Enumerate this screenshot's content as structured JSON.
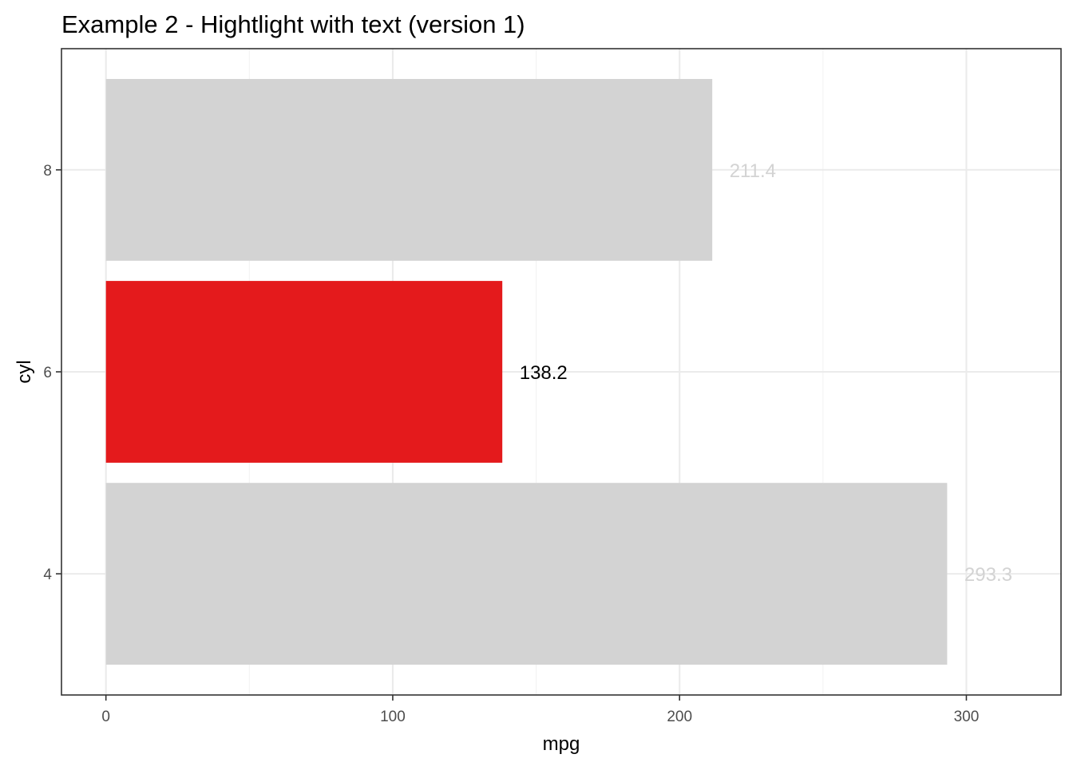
{
  "chart_data": {
    "type": "bar",
    "orientation": "horizontal",
    "title": "Example 2 - Hightlight with text (version 1)",
    "xlabel": "mpg",
    "ylabel": "cyl",
    "categories": [
      "4",
      "6",
      "8"
    ],
    "values": [
      293.3,
      138.2,
      211.4
    ],
    "value_labels": [
      "293.3",
      "138.2",
      "211.4"
    ],
    "highlighted_category": "6",
    "xlim": [
      -15.5,
      333
    ],
    "x_ticks": [
      0,
      100,
      200,
      300
    ],
    "x_tick_labels": [
      "0",
      "100",
      "200",
      "300"
    ],
    "grid": true,
    "legend": "none",
    "colors": {
      "highlight_bar": "#e41a1c",
      "other_bar": "#d3d3d3",
      "highlight_label": "#000000",
      "other_label": "#d3d3d3",
      "grid_major": "#ebebeb",
      "grid_minor": "#f2f2f2",
      "panel_border": "#333333"
    }
  }
}
